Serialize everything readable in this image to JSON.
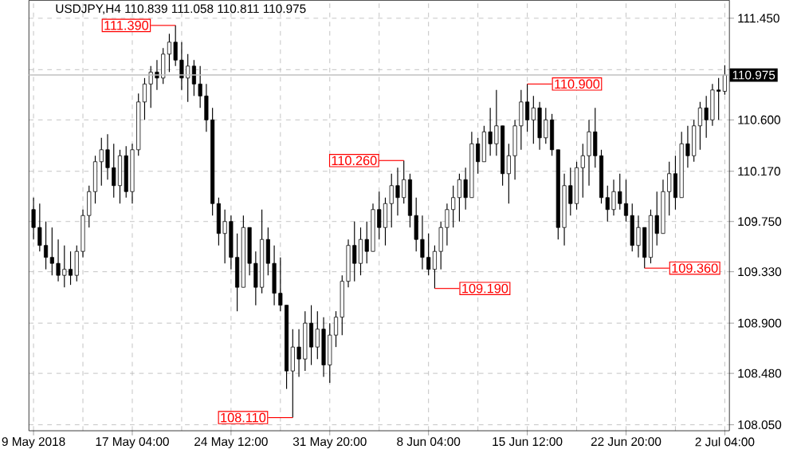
{
  "chart_data": {
    "type": "candlestick",
    "title": "USDJPY,H4  110.839 111.058 110.811 110.975",
    "categories": [
      "9 May 2018",
      null,
      null,
      null,
      null,
      null,
      null,
      null,
      null,
      null,
      null,
      null,
      null,
      null,
      null,
      null,
      "17 May 04:00",
      null,
      null,
      null,
      null,
      null,
      null,
      null,
      null,
      null,
      null,
      null,
      null,
      null,
      null,
      null,
      "24 May 12:00",
      null,
      null,
      null,
      null,
      null,
      null,
      null,
      null,
      null,
      null,
      null,
      null,
      null,
      null,
      null,
      "31 May 20:00",
      null,
      null,
      null,
      null,
      null,
      null,
      null,
      null,
      null,
      null,
      null,
      null,
      null,
      null,
      null,
      "8 Jun 04:00",
      null,
      null,
      null,
      null,
      null,
      null,
      null,
      null,
      null,
      null,
      null,
      null,
      null,
      null,
      null,
      "15 Jun 12:00",
      null,
      null,
      null,
      null,
      null,
      null,
      null,
      null,
      null,
      null,
      null,
      null,
      null,
      null,
      null,
      "22 Jun 20:00",
      null,
      null,
      null,
      null,
      null,
      null,
      null,
      null,
      null,
      null,
      null,
      null,
      null,
      null,
      null,
      "2 Jul 04:00"
    ],
    "ohlc": [
      [
        109.85,
        109.95,
        109.6,
        109.7
      ],
      [
        109.7,
        109.9,
        109.5,
        109.55
      ],
      [
        109.55,
        109.75,
        109.35,
        109.45
      ],
      [
        109.45,
        109.7,
        109.3,
        109.4
      ],
      [
        109.4,
        109.6,
        109.25,
        109.3
      ],
      [
        109.3,
        109.55,
        109.2,
        109.35
      ],
      [
        109.35,
        109.5,
        109.22,
        109.3
      ],
      [
        109.3,
        109.55,
        109.25,
        109.5
      ],
      [
        109.5,
        109.85,
        109.45,
        109.8
      ],
      [
        109.8,
        110.05,
        109.7,
        110.0
      ],
      [
        110.0,
        110.3,
        109.9,
        110.25
      ],
      [
        110.25,
        110.45,
        110.05,
        110.35
      ],
      [
        110.35,
        110.48,
        110.1,
        110.2
      ],
      [
        110.2,
        110.4,
        109.95,
        110.05
      ],
      [
        110.05,
        110.35,
        109.9,
        110.3
      ],
      [
        110.3,
        110.38,
        109.95,
        110.0
      ],
      [
        110.0,
        110.4,
        109.9,
        110.35
      ],
      [
        110.35,
        110.82,
        110.3,
        110.75
      ],
      [
        110.75,
        110.95,
        110.6,
        110.9
      ],
      [
        110.9,
        111.05,
        110.7,
        111.0
      ],
      [
        111.0,
        111.1,
        110.85,
        110.95
      ],
      [
        110.95,
        111.2,
        110.9,
        111.15
      ],
      [
        111.15,
        111.32,
        111.0,
        111.25
      ],
      [
        111.25,
        111.39,
        111.05,
        111.1
      ],
      [
        111.1,
        111.25,
        110.85,
        110.95
      ],
      [
        110.95,
        111.15,
        110.75,
        111.05
      ],
      [
        111.05,
        111.1,
        110.8,
        110.9
      ],
      [
        110.9,
        111.05,
        110.7,
        110.8
      ],
      [
        110.8,
        110.9,
        110.5,
        110.6
      ],
      [
        110.6,
        110.7,
        109.8,
        109.9
      ],
      [
        109.9,
        109.95,
        109.55,
        109.65
      ],
      [
        109.65,
        109.85,
        109.4,
        109.75
      ],
      [
        109.75,
        109.8,
        109.35,
        109.45
      ],
      [
        109.45,
        109.65,
        109.0,
        109.2
      ],
      [
        109.2,
        109.8,
        109.2,
        109.7
      ],
      [
        109.7,
        109.7,
        109.3,
        109.4
      ],
      [
        109.4,
        109.5,
        109.05,
        109.2
      ],
      [
        109.2,
        109.85,
        109.15,
        109.6
      ],
      [
        109.6,
        109.7,
        109.3,
        109.4
      ],
      [
        109.4,
        109.55,
        109.05,
        109.15
      ],
      [
        109.15,
        109.45,
        109.0,
        109.05
      ],
      [
        109.05,
        109.05,
        108.35,
        108.5
      ],
      [
        108.5,
        108.85,
        108.11,
        108.7
      ],
      [
        108.7,
        108.85,
        108.45,
        108.6
      ],
      [
        108.6,
        109.0,
        108.5,
        108.9
      ],
      [
        108.9,
        109.05,
        108.55,
        108.7
      ],
      [
        108.7,
        109.0,
        108.6,
        108.85
      ],
      [
        108.85,
        108.95,
        108.45,
        108.55
      ],
      [
        108.55,
        108.9,
        108.4,
        108.8
      ],
      [
        108.8,
        109.0,
        108.7,
        108.95
      ],
      [
        108.95,
        109.3,
        108.8,
        109.25
      ],
      [
        109.25,
        109.6,
        109.2,
        109.55
      ],
      [
        109.55,
        109.75,
        109.25,
        109.4
      ],
      [
        109.4,
        109.7,
        109.3,
        109.6
      ],
      [
        109.6,
        109.75,
        109.4,
        109.5
      ],
      [
        109.5,
        109.9,
        109.5,
        109.85
      ],
      [
        109.85,
        110.0,
        109.6,
        109.7
      ],
      [
        109.7,
        109.95,
        109.55,
        109.9
      ],
      [
        109.9,
        110.15,
        109.7,
        110.05
      ],
      [
        110.05,
        110.2,
        109.8,
        109.95
      ],
      [
        109.95,
        110.26,
        109.9,
        110.1
      ],
      [
        110.1,
        110.15,
        109.7,
        109.8
      ],
      [
        109.8,
        109.95,
        109.5,
        109.6
      ],
      [
        109.6,
        109.8,
        109.35,
        109.45
      ],
      [
        109.45,
        109.65,
        109.3,
        109.35
      ],
      [
        109.35,
        109.55,
        109.19,
        109.5
      ],
      [
        109.5,
        109.75,
        109.35,
        109.7
      ],
      [
        109.7,
        109.9,
        109.55,
        109.85
      ],
      [
        109.85,
        110.05,
        109.7,
        109.95
      ],
      [
        109.95,
        110.15,
        109.75,
        110.1
      ],
      [
        110.1,
        110.2,
        109.85,
        109.95
      ],
      [
        109.95,
        110.5,
        109.95,
        110.4
      ],
      [
        110.4,
        110.45,
        110.15,
        110.25
      ],
      [
        110.25,
        110.55,
        110.25,
        110.5
      ],
      [
        110.5,
        110.7,
        110.3,
        110.4
      ],
      [
        110.4,
        110.85,
        110.3,
        110.55
      ],
      [
        110.55,
        110.55,
        110.05,
        110.15
      ],
      [
        110.15,
        110.4,
        109.9,
        110.3
      ],
      [
        110.3,
        110.6,
        110.1,
        110.55
      ],
      [
        110.55,
        110.85,
        110.35,
        110.75
      ],
      [
        110.75,
        110.9,
        110.5,
        110.6
      ],
      [
        110.6,
        110.8,
        110.4,
        110.7
      ],
      [
        110.7,
        110.75,
        110.35,
        110.45
      ],
      [
        110.45,
        110.7,
        110.4,
        110.6
      ],
      [
        110.6,
        110.65,
        110.3,
        110.35
      ],
      [
        110.35,
        110.35,
        109.6,
        109.7
      ],
      [
        109.7,
        110.15,
        109.55,
        110.05
      ],
      [
        110.05,
        110.2,
        109.8,
        109.9
      ],
      [
        109.9,
        110.25,
        109.85,
        110.2
      ],
      [
        110.2,
        110.4,
        109.95,
        110.3
      ],
      [
        110.3,
        110.6,
        110.05,
        110.5
      ],
      [
        110.5,
        110.7,
        110.2,
        110.3
      ],
      [
        110.3,
        110.35,
        109.9,
        109.95
      ],
      [
        109.95,
        110.05,
        109.75,
        109.85
      ],
      [
        109.85,
        110.1,
        109.8,
        110.0
      ],
      [
        110.0,
        110.15,
        109.85,
        109.9
      ],
      [
        109.9,
        110.1,
        109.75,
        109.8
      ],
      [
        109.8,
        109.9,
        109.5,
        109.55
      ],
      [
        109.55,
        109.8,
        109.45,
        109.7
      ],
      [
        109.7,
        109.7,
        109.36,
        109.45
      ],
      [
        109.45,
        109.85,
        109.4,
        109.8
      ],
      [
        109.8,
        110.0,
        109.55,
        109.65
      ],
      [
        109.65,
        110.1,
        109.65,
        110.0
      ],
      [
        110.0,
        110.25,
        109.8,
        110.15
      ],
      [
        110.15,
        110.3,
        109.85,
        109.95
      ],
      [
        109.95,
        110.5,
        109.95,
        110.4
      ],
      [
        110.4,
        110.55,
        110.2,
        110.3
      ],
      [
        110.3,
        110.6,
        110.25,
        110.55
      ],
      [
        110.55,
        110.75,
        110.35,
        110.7
      ],
      [
        110.7,
        110.8,
        110.45,
        110.6
      ],
      [
        110.6,
        110.9,
        110.55,
        110.85
      ],
      [
        110.85,
        110.95,
        110.6,
        110.839
      ],
      [
        110.839,
        111.058,
        110.811,
        110.975
      ]
    ],
    "color": "#000000",
    "ylim": [
      108.0,
      111.6
    ],
    "yticks": [
      {
        "value": 108.05,
        "label": "108.050"
      },
      {
        "value": 108.48,
        "label": "108.480"
      },
      {
        "value": 108.9,
        "label": "108.900"
      },
      {
        "value": 109.33,
        "label": "109.330"
      },
      {
        "value": 109.75,
        "label": "109.750"
      },
      {
        "value": 110.17,
        "label": "110.170"
      },
      {
        "value": 110.6,
        "label": "110.600"
      },
      {
        "value": 111.02,
        "label": null
      },
      {
        "value": 111.45,
        "label": "111.450"
      }
    ],
    "grid": true,
    "ref_lines": [
      {
        "axis": "y",
        "value": 110.975,
        "label": "110.975",
        "color": "#c0c0c0"
      }
    ],
    "annotations": [
      "111.390",
      "110.260",
      "110.900",
      "109.190",
      "109.360",
      "108.110"
    ]
  }
}
